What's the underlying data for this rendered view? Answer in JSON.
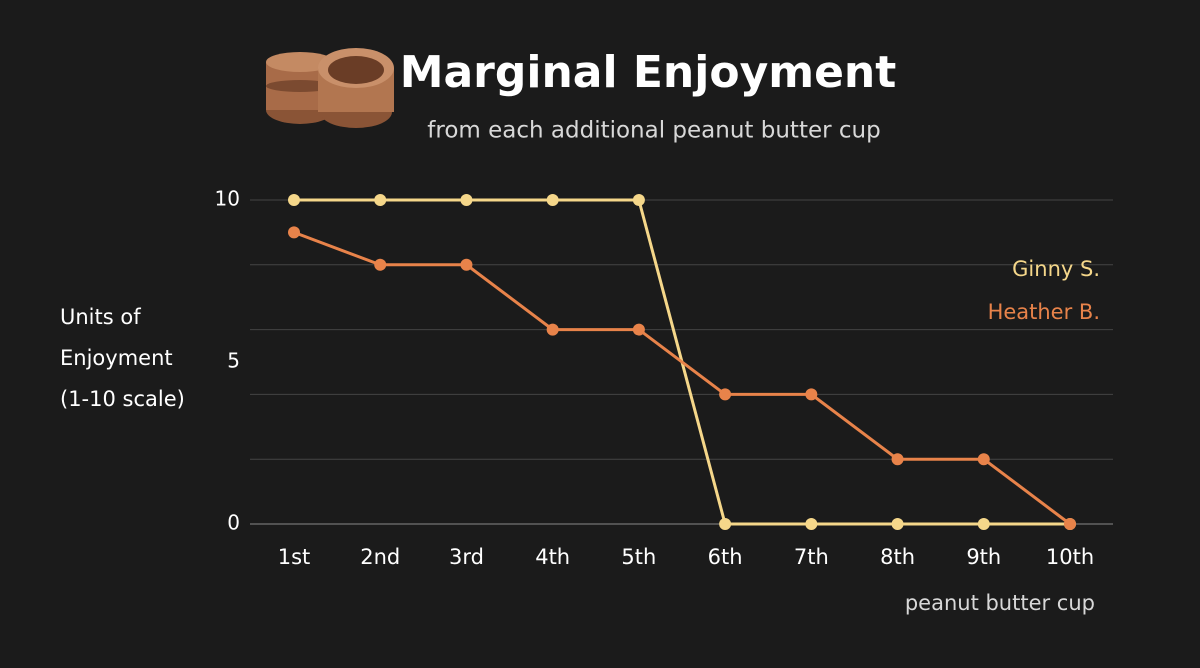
{
  "chart_data": {
    "type": "line",
    "title": "Marginal Enjoyment",
    "subtitle": "from each additional peanut butter cup",
    "ylabel_lines": [
      "Units of",
      "Enjoyment",
      "(1-10 scale)"
    ],
    "xlabel": "peanut butter cup",
    "categories": [
      "1st",
      "2nd",
      "3rd",
      "4th",
      "5th",
      "6th",
      "7th",
      "8th",
      "9th",
      "10th"
    ],
    "series": [
      {
        "name": "Ginny S.",
        "color": "#f5d78a",
        "values": [
          10,
          10,
          10,
          10,
          10,
          0,
          0,
          0,
          0,
          0
        ]
      },
      {
        "name": "Heather B.",
        "color": "#e8834a",
        "values": [
          9,
          8,
          8,
          6,
          6,
          4,
          4,
          2,
          2,
          0
        ]
      }
    ],
    "ylim": [
      0,
      10
    ],
    "yticks": [
      0,
      5,
      10
    ],
    "grid_lines": [
      0,
      2,
      4,
      6,
      8,
      10
    ],
    "legend": "right"
  }
}
